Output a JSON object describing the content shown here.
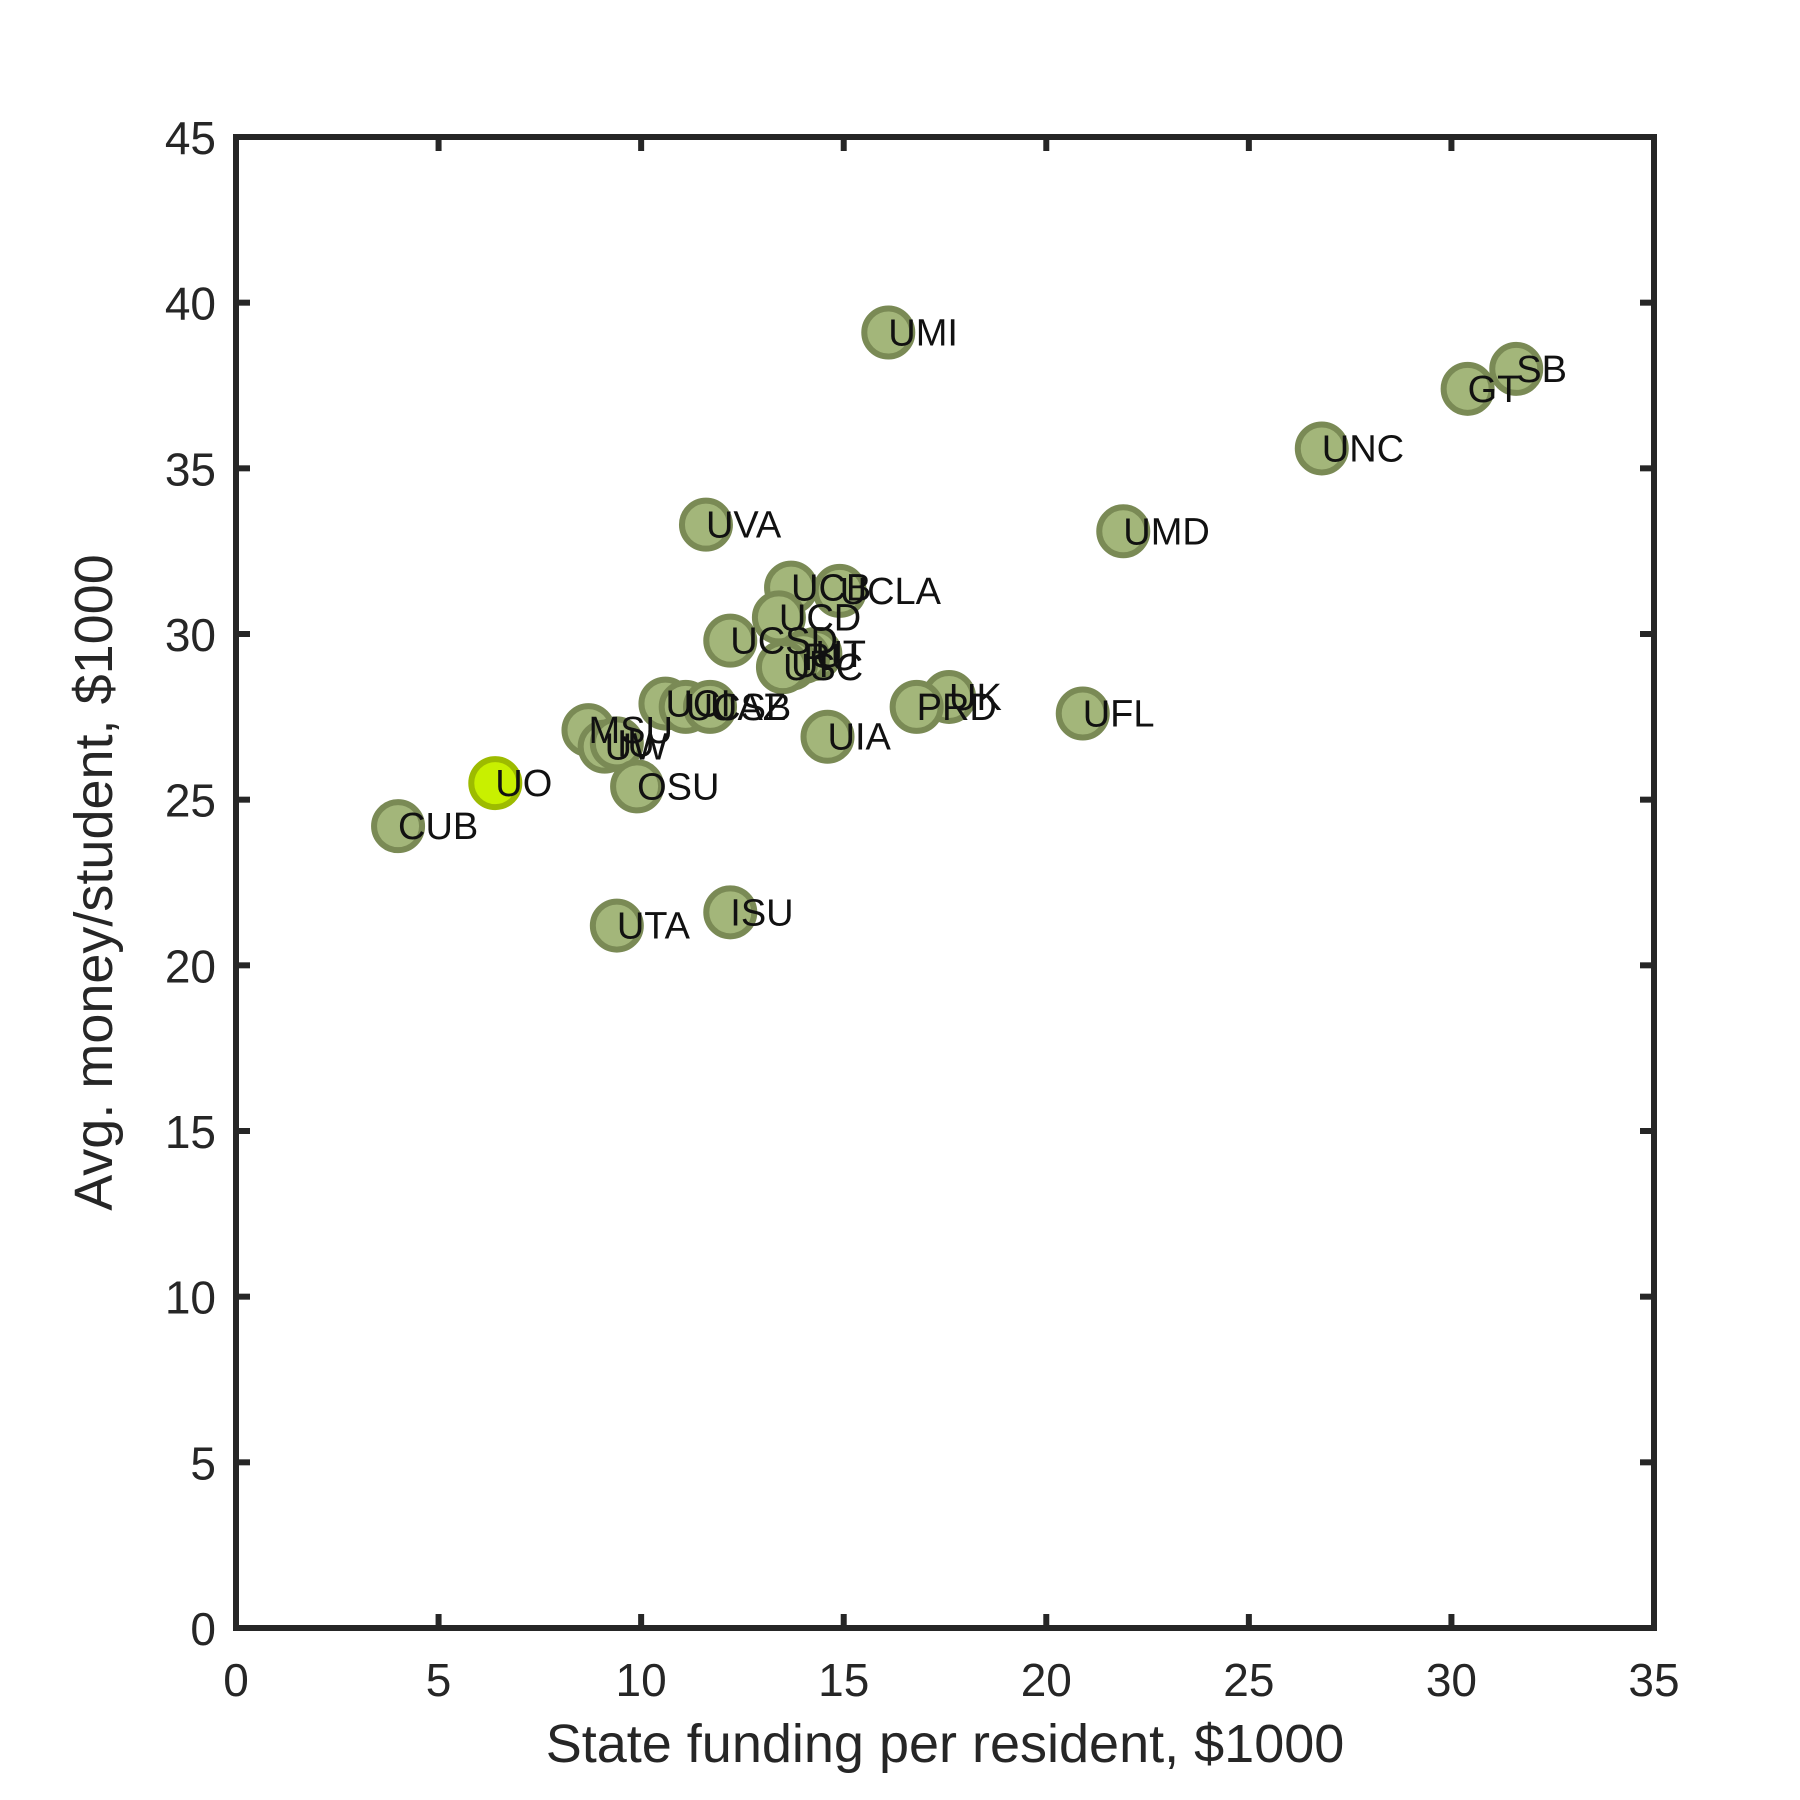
{
  "chart_data": {
    "type": "scatter",
    "xlabel": "State funding per resident, $1000",
    "ylabel": "Avg. money/student, $1000",
    "xlim": [
      0,
      35
    ],
    "ylim": [
      0,
      45
    ],
    "xticks": [
      0,
      5,
      10,
      15,
      20,
      25,
      30,
      35
    ],
    "yticks": [
      0,
      5,
      10,
      15,
      20,
      25,
      30,
      35,
      40,
      45
    ],
    "grid": false,
    "colors": {
      "marker_fill": "#a3b67a",
      "marker_edge": "#7a8a55",
      "highlight_fill": "#c8f000",
      "highlight_edge": "#9dbb00",
      "axis": "#262626"
    },
    "points": [
      {
        "label": "UMI",
        "x": 16.1,
        "y": 39.1
      },
      {
        "label": "SB",
        "x": 31.6,
        "y": 38.0
      },
      {
        "label": "GT",
        "x": 30.4,
        "y": 37.4
      },
      {
        "label": "UNC",
        "x": 26.8,
        "y": 35.6
      },
      {
        "label": "UVA",
        "x": 11.6,
        "y": 33.3
      },
      {
        "label": "UMD",
        "x": 21.9,
        "y": 33.1
      },
      {
        "label": "UCB",
        "x": 13.7,
        "y": 31.4
      },
      {
        "label": "UCLA",
        "x": 14.9,
        "y": 31.3
      },
      {
        "label": "UCD",
        "x": 13.4,
        "y": 30.5
      },
      {
        "label": "UCSD",
        "x": 12.2,
        "y": 29.8
      },
      {
        "label": "UT",
        "x": 14.3,
        "y": 29.4
      },
      {
        "label": "RU",
        "x": 14.0,
        "y": 29.3
      },
      {
        "label": "UI",
        "x": 13.7,
        "y": 29.1
      },
      {
        "label": "USC",
        "x": 13.5,
        "y": 29.0
      },
      {
        "label": "UK",
        "x": 17.6,
        "y": 28.1
      },
      {
        "label": "PRD",
        "x": 16.8,
        "y": 27.8
      },
      {
        "label": "UCI",
        "x": 10.6,
        "y": 27.9
      },
      {
        "label": "UCSB",
        "x": 11.1,
        "y": 27.8
      },
      {
        "label": "UAZ",
        "x": 11.7,
        "y": 27.8
      },
      {
        "label": "UFL",
        "x": 20.9,
        "y": 27.6
      },
      {
        "label": "MSU",
        "x": 8.7,
        "y": 27.1
      },
      {
        "label": "UIA",
        "x": 14.6,
        "y": 26.9
      },
      {
        "label": "UW",
        "x": 9.1,
        "y": 26.6
      },
      {
        "label": "IU",
        "x": 9.4,
        "y": 26.7
      },
      {
        "label": "OSU",
        "x": 9.9,
        "y": 25.4
      },
      {
        "label": "UO",
        "x": 6.4,
        "y": 25.5,
        "highlight": true
      },
      {
        "label": "CUB",
        "x": 4.0,
        "y": 24.2
      },
      {
        "label": "ISU",
        "x": 12.2,
        "y": 21.6
      },
      {
        "label": "UTA",
        "x": 9.4,
        "y": 21.2
      }
    ]
  }
}
